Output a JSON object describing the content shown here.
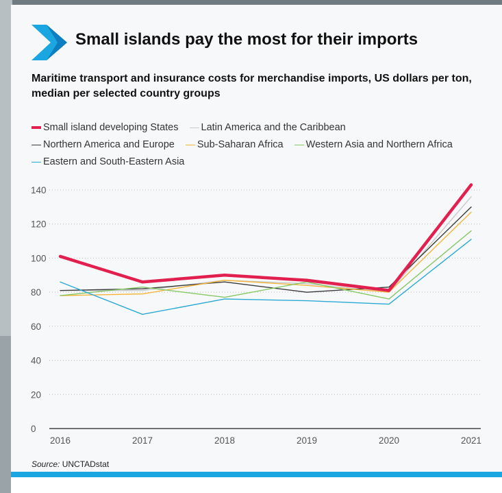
{
  "header": {
    "title": "Small islands pay the most for their imports",
    "subtitle": "Maritime transport and insurance costs for merchandise imports, US dollars per ton, median per selected country groups"
  },
  "footer": {
    "source_label": "Source:",
    "source_value": "UNCTADstat"
  },
  "colors": {
    "accent_blue": "#1aa6e0",
    "chevron_dark": "#0d7fc0"
  },
  "chart_data": {
    "type": "line",
    "title": "Small islands pay the most for their imports",
    "subtitle": "Maritime transport and insurance costs for merchandise imports, US dollars per ton, median per selected country groups",
    "xlabel": "",
    "ylabel": "",
    "x": [
      "2016",
      "2017",
      "2018",
      "2019",
      "2020",
      "2021"
    ],
    "ylim": [
      0,
      140
    ],
    "yticks": [
      0,
      20,
      40,
      60,
      80,
      100,
      120,
      140
    ],
    "grid": "horizontal dotted",
    "legend_position": "top",
    "series": [
      {
        "name": "Small island developing States",
        "color": "#e2204f",
        "values": [
          101,
          86,
          90,
          87,
          81,
          143
        ]
      },
      {
        "name": "Latin America and the Caribbean",
        "color": "#c7c9cc",
        "values": [
          81,
          81,
          87,
          85,
          80,
          136
        ]
      },
      {
        "name": "Northern America and Europe",
        "color": "#3a3a3a",
        "values": [
          81,
          82,
          86,
          80,
          83,
          130
        ]
      },
      {
        "name": "Sub-Saharan Africa",
        "color": "#f4b63c",
        "values": [
          78,
          79,
          87,
          84,
          80,
          127
        ]
      },
      {
        "name": "Western Asia and Northern Africa",
        "color": "#86c765",
        "values": [
          78,
          83,
          77,
          86,
          76,
          116
        ]
      },
      {
        "name": "Eastern and South-Eastern Asia",
        "color": "#2aa9d6",
        "values": [
          86,
          67,
          76,
          75,
          73,
          111
        ]
      }
    ]
  }
}
